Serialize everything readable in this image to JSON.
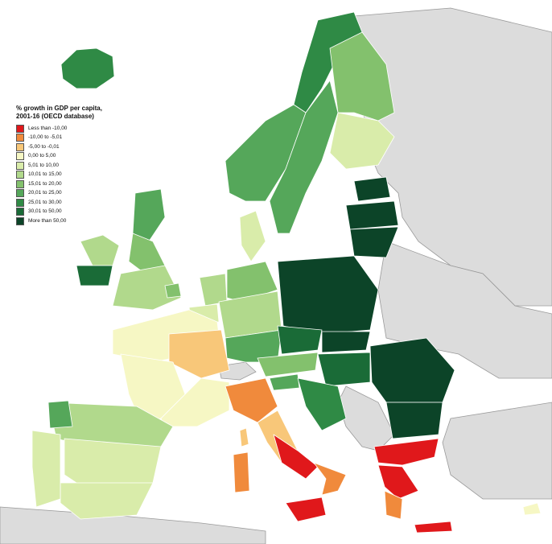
{
  "map": {
    "legend": {
      "title_line1": "% growth in GDP per capita,",
      "title_line2": "2001-16 (OECD database)",
      "items": [
        {
          "label": "Less than -10,00",
          "color": "#e0181b"
        },
        {
          "label": "-10,00 to -5,01",
          "color": "#f08a3c"
        },
        {
          "label": "-5,00 to -0,01",
          "color": "#f8c779"
        },
        {
          "label": "0,00 to 5,00",
          "color": "#f6f7c4"
        },
        {
          "label": "5,01 to 10,00",
          "color": "#d9ecaa"
        },
        {
          "label": "10,01 to 15,00",
          "color": "#b1d98c"
        },
        {
          "label": "15,01 to 20,00",
          "color": "#83c16d"
        },
        {
          "label": "20,01 to 25,00",
          "color": "#55a75a"
        },
        {
          "label": "25,01 to 30,00",
          "color": "#2f8a45"
        },
        {
          "label": "30,01 to 50,00",
          "color": "#1a6b37"
        },
        {
          "label": "More than 50,00",
          "color": "#0c4428"
        }
      ]
    },
    "colors": {
      "non_data_country": "#dcdcdc",
      "sea": "#ffffff",
      "border": "#9a9a9a"
    }
  }
}
